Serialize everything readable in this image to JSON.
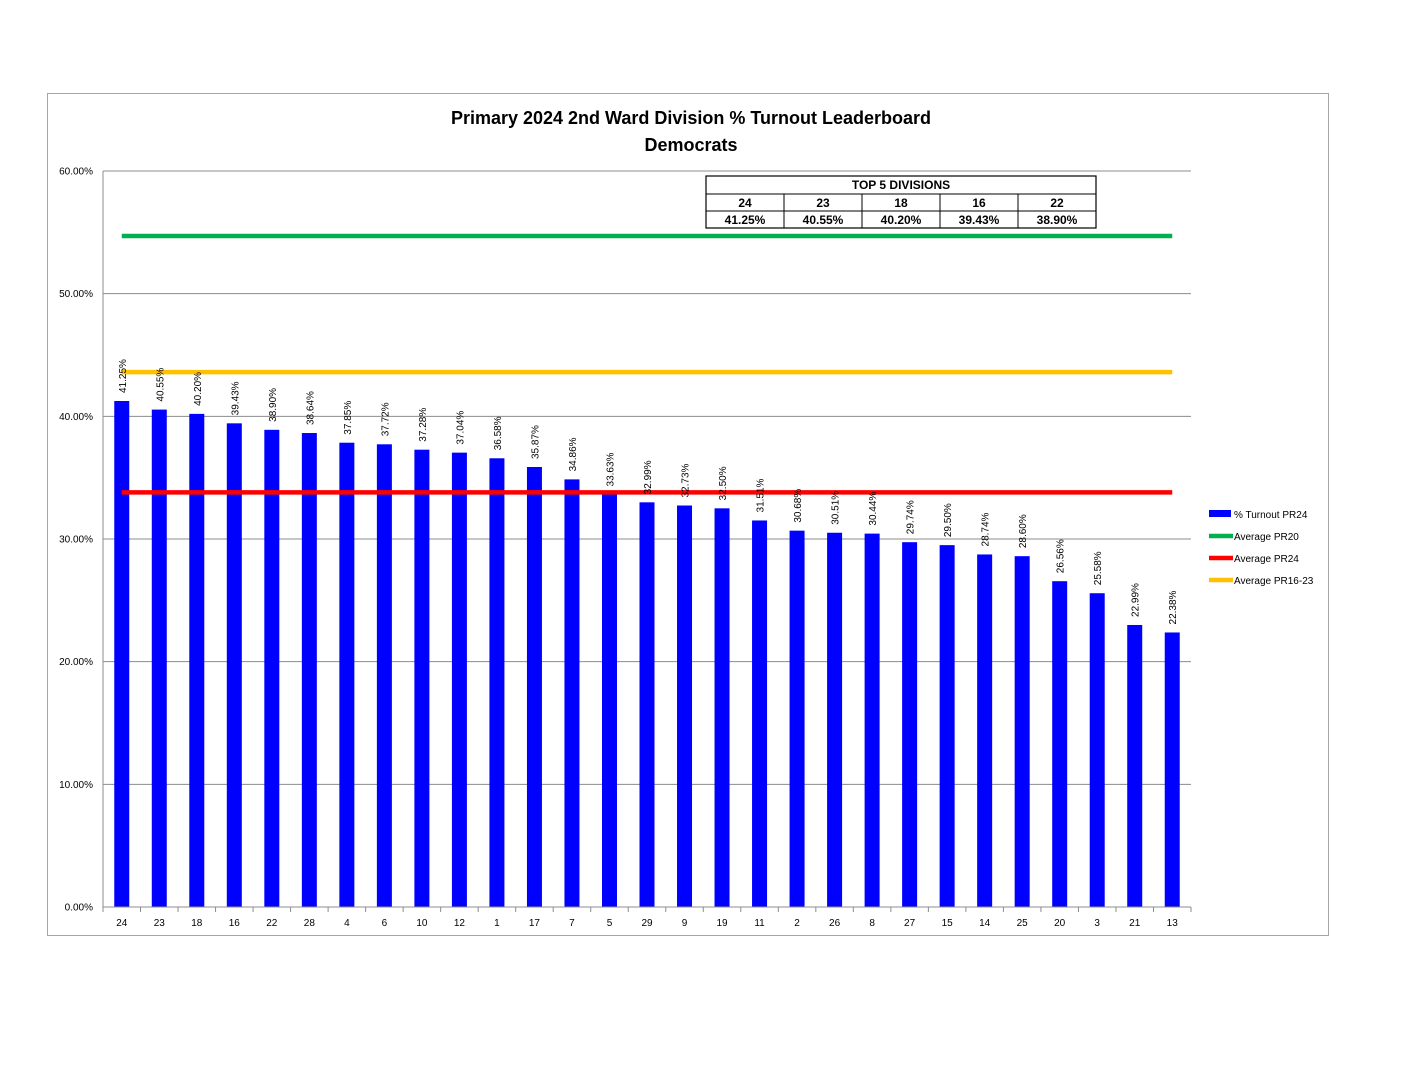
{
  "chart_data": {
    "type": "bar",
    "title": "Primary 2024 2nd Ward Division % Turnout Leaderboard",
    "subtitle": "Democrats",
    "xlabel": "",
    "ylabel": "",
    "ylim": [
      0,
      60
    ],
    "yticks": [
      "0.00%",
      "10.00%",
      "20.00%",
      "30.00%",
      "40.00%",
      "50.00%",
      "60.00%"
    ],
    "grid": true,
    "legend_position": "right",
    "categories": [
      "24",
      "23",
      "18",
      "16",
      "22",
      "28",
      "4",
      "6",
      "10",
      "12",
      "1",
      "17",
      "7",
      "5",
      "29",
      "9",
      "19",
      "11",
      "2",
      "26",
      "8",
      "27",
      "15",
      "14",
      "25",
      "20",
      "3",
      "21",
      "13"
    ],
    "series": [
      {
        "name": "% Turnout PR24",
        "kind": "bar",
        "color": "#0000ff",
        "values": [
          41.25,
          40.55,
          40.2,
          39.43,
          38.9,
          38.64,
          37.85,
          37.72,
          37.28,
          37.04,
          36.58,
          35.87,
          34.86,
          33.63,
          32.99,
          32.73,
          32.5,
          31.51,
          30.68,
          30.51,
          30.44,
          29.74,
          29.5,
          28.74,
          28.6,
          26.56,
          25.58,
          22.99,
          22.38
        ],
        "labels": [
          "41.25%",
          "40.55%",
          "40.20%",
          "39.43%",
          "38.90%",
          "38.64%",
          "37.85%",
          "37.72%",
          "37.28%",
          "37.04%",
          "36.58%",
          "35.87%",
          "34.86%",
          "33.63%",
          "32.99%",
          "32.73%",
          "32.50%",
          "31.51%",
          "30.68%",
          "30.51%",
          "30.44%",
          "29.74%",
          "29.50%",
          "28.74%",
          "28.60%",
          "26.56%",
          "25.58%",
          "22.99%",
          "22.38%"
        ]
      },
      {
        "name": "Average PR20",
        "kind": "line",
        "color": "#00b050",
        "value": 54.7
      },
      {
        "name": "Average PR24",
        "kind": "line",
        "color": "#ff0000",
        "value": 33.8
      },
      {
        "name": "Average PR16-23",
        "kind": "line",
        "color": "#ffc000",
        "value": 43.6
      }
    ]
  },
  "top5": {
    "title": "TOP 5 DIVISIONS",
    "divisions": [
      "24",
      "23",
      "18",
      "16",
      "22"
    ],
    "values": [
      "41.25%",
      "40.55%",
      "40.20%",
      "39.43%",
      "38.90%"
    ]
  }
}
